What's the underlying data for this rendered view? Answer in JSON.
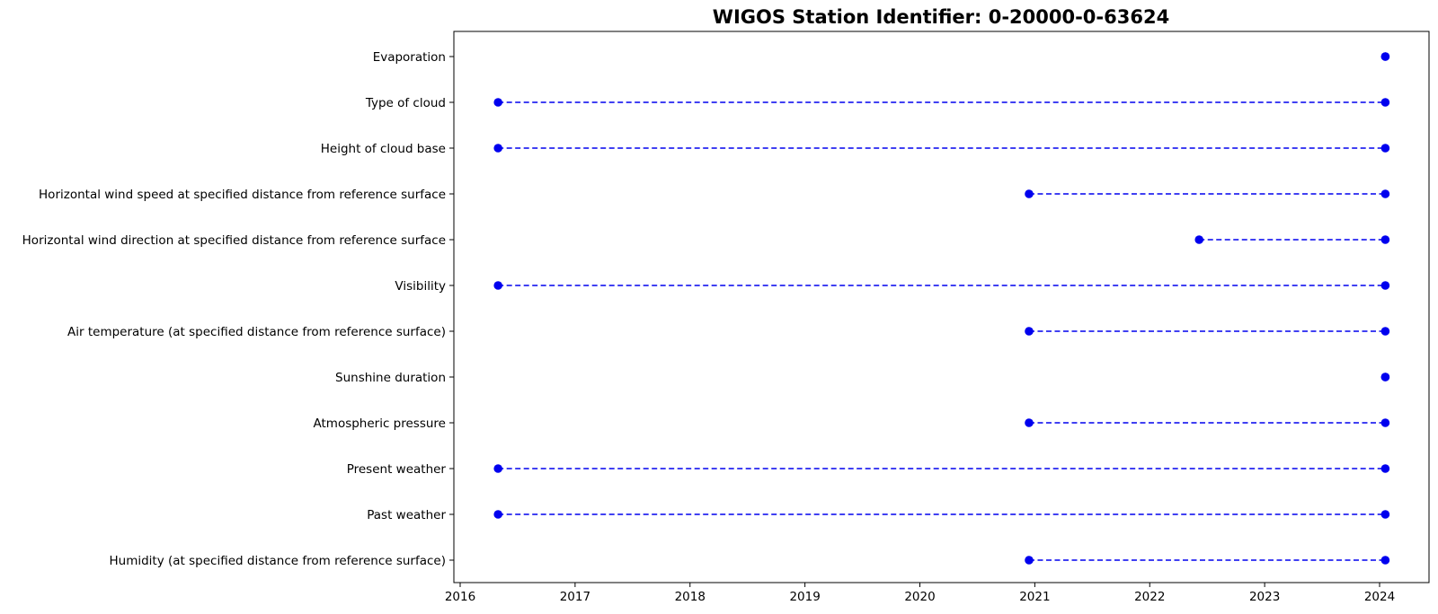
{
  "chart_data": {
    "type": "timeline",
    "title": "WIGOS Station Identifier: 0-20000-0-63624",
    "xlabel": "",
    "ylabel": "",
    "xlim": [
      2016,
      2024
    ],
    "x_ticks": [
      "2016",
      "2017",
      "2018",
      "2019",
      "2020",
      "2021",
      "2022",
      "2023",
      "2024"
    ],
    "grid": false,
    "line_color": "#0000ee",
    "line_style": "dashed",
    "marker": "circle",
    "categories": [
      "Evaporation",
      "Type of cloud",
      "Height of cloud base",
      "Horizontal wind speed at specified distance from reference surface",
      "Horizontal wind direction at specified distance from reference surface",
      "Visibility",
      "Air temperature (at specified distance from reference surface)",
      "Sunshine duration",
      "Atmospheric pressure",
      "Present weather",
      "Past weather",
      "Humidity  (at specified distance from reference surface)"
    ],
    "series": [
      {
        "start": 2024.05,
        "end": 2024.05
      },
      {
        "start": 2016.33,
        "end": 2024.05
      },
      {
        "start": 2016.33,
        "end": 2024.05
      },
      {
        "start": 2020.95,
        "end": 2024.05
      },
      {
        "start": 2022.43,
        "end": 2024.05
      },
      {
        "start": 2016.33,
        "end": 2024.05
      },
      {
        "start": 2020.95,
        "end": 2024.05
      },
      {
        "start": 2024.05,
        "end": 2024.05
      },
      {
        "start": 2020.95,
        "end": 2024.05
      },
      {
        "start": 2016.33,
        "end": 2024.05
      },
      {
        "start": 2016.33,
        "end": 2024.05
      },
      {
        "start": 2020.95,
        "end": 2024.05
      }
    ]
  }
}
